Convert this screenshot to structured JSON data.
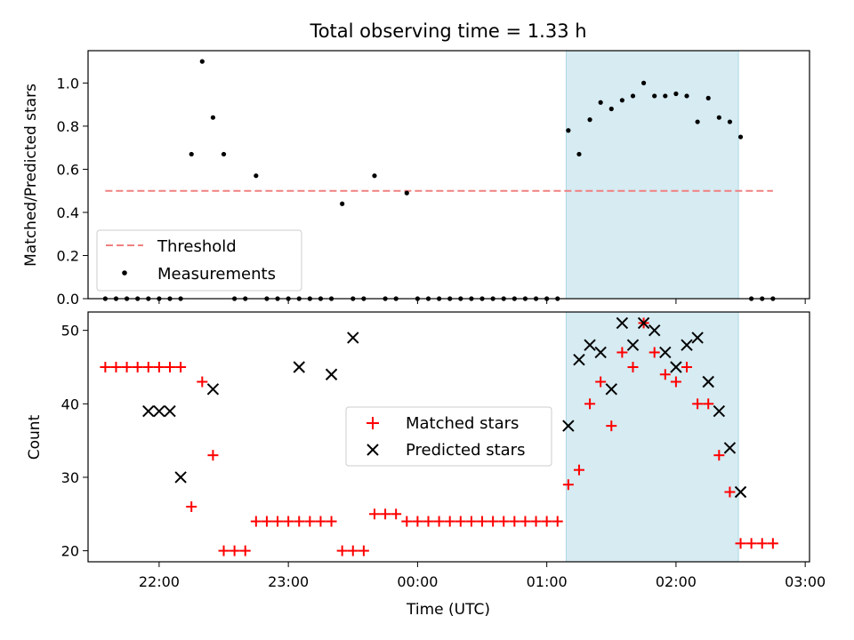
{
  "chart_data": {
    "type": "scatter",
    "title": "Total observing time = 1.33 h",
    "xlabel": "Time (UTC)",
    "x_ticks": [
      {
        "label": "22:00",
        "hour": 22.0
      },
      {
        "label": "23:00",
        "hour": 23.0
      },
      {
        "label": "00:00",
        "hour": 24.0
      },
      {
        "label": "01:00",
        "hour": 25.0
      },
      {
        "label": "02:00",
        "hour": 26.0
      },
      {
        "label": "03:00",
        "hour": 27.0
      }
    ],
    "xlim": [
      "21:27",
      "03:02"
    ],
    "highlight_span": {
      "start": "01:09",
      "end": "02:29",
      "color": "#add8e6"
    },
    "colors": {
      "threshold": "#f08080",
      "measurements": "#000000",
      "matched": "#ff0000",
      "predicted": "#000000",
      "span": "#add8e6"
    },
    "top_panel": {
      "ylabel": "Matched/Predicted stars",
      "ylim": [
        0,
        1.15
      ],
      "y_ticks": [
        "0.0",
        "0.2",
        "0.4",
        "0.6",
        "0.8",
        "1.0"
      ],
      "legend": {
        "position": "lower left",
        "entries": [
          "Threshold",
          "Measurements"
        ]
      },
      "threshold": {
        "value": 0.5,
        "x_start": "21:35",
        "x_end": "02:45"
      },
      "measurements": {
        "x": [
          "21:35",
          "21:40",
          "21:45",
          "21:50",
          "21:55",
          "22:00",
          "22:05",
          "22:10",
          "22:15",
          "22:20",
          "22:25",
          "22:30",
          "22:35",
          "22:40",
          "22:45",
          "22:50",
          "22:55",
          "23:00",
          "23:05",
          "23:10",
          "23:15",
          "23:20",
          "23:25",
          "23:30",
          "23:35",
          "23:40",
          "23:45",
          "23:50",
          "23:55",
          "00:00",
          "00:05",
          "00:10",
          "00:15",
          "00:20",
          "00:25",
          "00:30",
          "00:35",
          "00:40",
          "00:45",
          "00:50",
          "00:55",
          "01:00",
          "01:05",
          "01:10",
          "01:15",
          "01:20",
          "01:25",
          "01:30",
          "01:35",
          "01:40",
          "01:45",
          "01:50",
          "01:55",
          "02:00",
          "02:05",
          "02:10",
          "02:15",
          "02:20",
          "02:25",
          "02:30",
          "02:35",
          "02:40",
          "02:45"
        ],
        "y": [
          0,
          0,
          0,
          0,
          0,
          0,
          0,
          0,
          0.67,
          1.1,
          0.84,
          0.67,
          0,
          0,
          0.57,
          0,
          0,
          0,
          0,
          0,
          0,
          0,
          0.44,
          0,
          0,
          0.57,
          0,
          0,
          0.49,
          0,
          0,
          0,
          0,
          0,
          0,
          0,
          0,
          0,
          0,
          0,
          0,
          0,
          0,
          0.78,
          0.67,
          0.83,
          0.91,
          0.88,
          0.92,
          0.94,
          1.0,
          0.94,
          0.94,
          0.95,
          0.94,
          0.82,
          0.93,
          0.84,
          0.82,
          0.75,
          0,
          0,
          0
        ]
      }
    },
    "bottom_panel": {
      "ylabel": "Count",
      "ylim": [
        18.5,
        52.5
      ],
      "y_ticks": [
        "20",
        "30",
        "40",
        "50"
      ],
      "legend": {
        "position": "center",
        "entries": [
          "Matched stars",
          "Predicted stars"
        ]
      },
      "matched": {
        "x": [
          "21:35",
          "21:40",
          "21:45",
          "21:50",
          "21:55",
          "22:00",
          "22:05",
          "22:10",
          "22:15",
          "22:20",
          "22:25",
          "22:30",
          "22:35",
          "22:40",
          "22:45",
          "22:50",
          "22:55",
          "23:00",
          "23:05",
          "23:10",
          "23:15",
          "23:20",
          "23:25",
          "23:30",
          "23:35",
          "23:40",
          "23:45",
          "23:50",
          "23:55",
          "00:00",
          "00:05",
          "00:10",
          "00:15",
          "00:20",
          "00:25",
          "00:30",
          "00:35",
          "00:40",
          "00:45",
          "00:50",
          "00:55",
          "01:00",
          "01:05",
          "01:10",
          "01:15",
          "01:20",
          "01:25",
          "01:30",
          "01:35",
          "01:40",
          "01:45",
          "01:50",
          "01:55",
          "02:00",
          "02:05",
          "02:10",
          "02:15",
          "02:20",
          "02:25",
          "02:30",
          "02:35",
          "02:40",
          "02:45"
        ],
        "y": [
          45,
          45,
          45,
          45,
          45,
          45,
          45,
          45,
          26,
          43,
          33,
          20,
          20,
          20,
          24,
          24,
          24,
          24,
          24,
          24,
          24,
          24,
          20,
          20,
          20,
          25,
          25,
          25,
          24,
          24,
          24,
          24,
          24,
          24,
          24,
          24,
          24,
          24,
          24,
          24,
          24,
          24,
          24,
          29,
          31,
          40,
          43,
          37,
          47,
          45,
          51,
          47,
          44,
          43,
          45,
          40,
          40,
          33,
          28,
          21,
          21,
          21,
          21
        ]
      },
      "predicted": {
        "x": [
          "21:55",
          "22:00",
          "22:05",
          "22:10",
          "22:25",
          "23:05",
          "23:20",
          "23:30",
          "01:10",
          "01:15",
          "01:20",
          "01:25",
          "01:30",
          "01:35",
          "01:40",
          "01:45",
          "01:50",
          "01:55",
          "02:00",
          "02:05",
          "02:10",
          "02:15",
          "02:20",
          "02:25",
          "02:30"
        ],
        "y": [
          39,
          39,
          39,
          30,
          42,
          45,
          44,
          49,
          37,
          46,
          48,
          47,
          42,
          51,
          48,
          51,
          50,
          47,
          45,
          48,
          49,
          43,
          39,
          34,
          28
        ]
      }
    }
  }
}
